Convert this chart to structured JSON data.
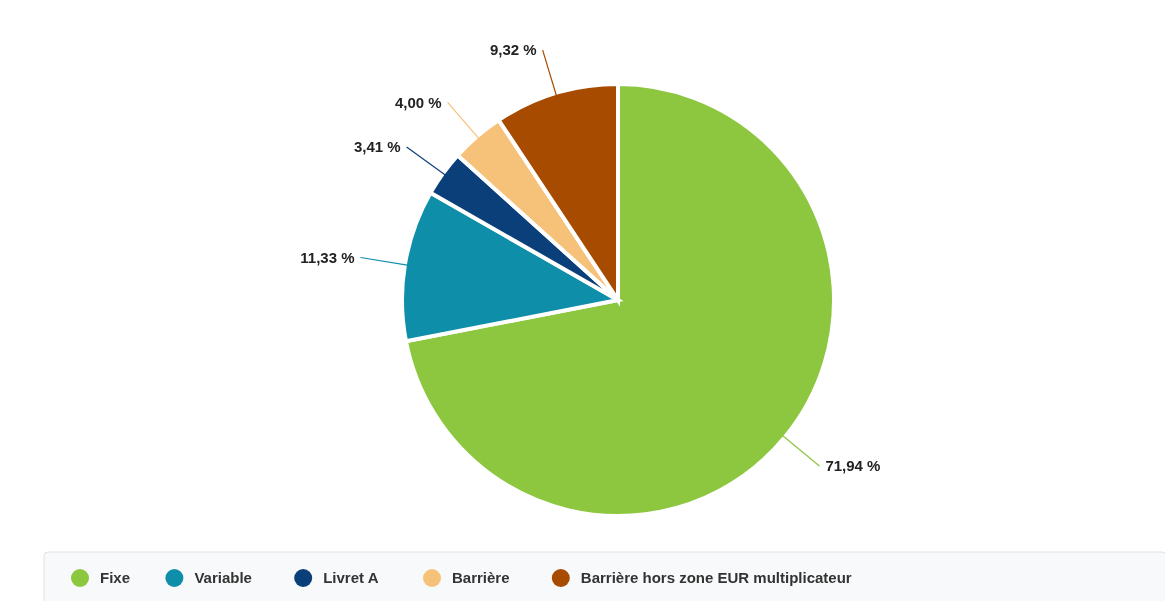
{
  "chart_data": {
    "type": "pie",
    "categories": [
      "Fixe",
      "Variable",
      "Livret A",
      "Barrière",
      "Barrière hors zone EUR multiplicateur"
    ],
    "values": [
      71.94,
      11.33,
      3.41,
      4.0,
      9.32
    ],
    "colors": [
      "#8dc63f",
      "#0e8ea8",
      "#0b3f7a",
      "#f6c27a",
      "#a64b00"
    ],
    "value_labels": [
      "71,94 %",
      "11,33 %",
      "3,41 %",
      "4,00 %",
      "9,32 %"
    ],
    "legend": "bottom"
  }
}
